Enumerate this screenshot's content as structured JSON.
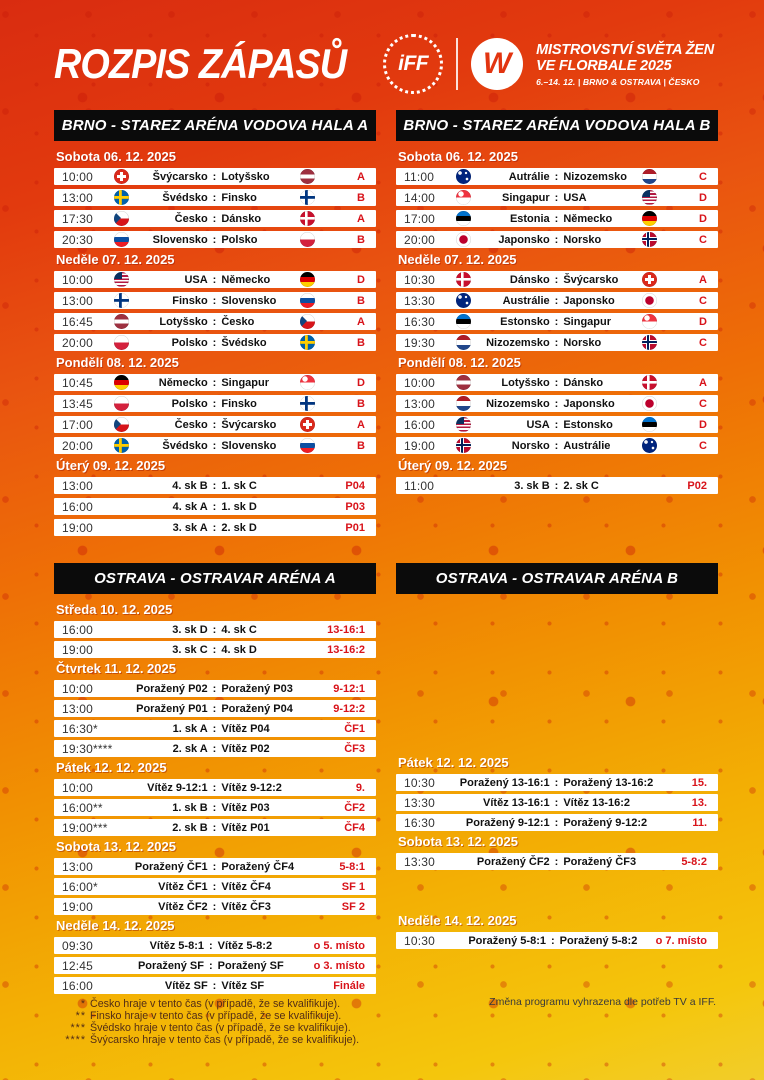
{
  "page": {
    "title": "ROZPIS ZÁPASŮ",
    "logo": {
      "iff_label": "iFF",
      "wfc_label": "W",
      "event_title_line1": "MISTROVSTVÍ SVĚTA ŽEN",
      "event_title_line2": "VE FLORBALE 2025",
      "event_subtitle": "6.–14. 12. | BRNO & OSTRAVA | ČESKO"
    },
    "colors": {
      "accent_red": "#d8131a",
      "bar_black": "#0b0b0b",
      "background_top": "#d92c10",
      "background_bottom": "#f2cd2a",
      "row_white": "#ffffff"
    }
  },
  "sections": [
    {
      "id": "brno-a",
      "title": "BRNO - STAREZ ARÉNA VODOVA HALA A",
      "groups": [
        {
          "date": "Sobota 06. 12. 2025",
          "matches": [
            {
              "time": "10:00",
              "home": "Švýcarsko",
              "away": "Lotyšsko",
              "home_flag": "che",
              "away_flag": "lat",
              "code": "A"
            },
            {
              "time": "13:00",
              "home": "Švédsko",
              "away": "Finsko",
              "home_flag": "swe",
              "away_flag": "fin",
              "code": "B"
            },
            {
              "time": "17:30",
              "home": "Česko",
              "away": "Dánsko",
              "home_flag": "cze",
              "away_flag": "den",
              "code": "A"
            },
            {
              "time": "20:30",
              "home": "Slovensko",
              "away": "Polsko",
              "home_flag": "svk",
              "away_flag": "pol",
              "code": "B"
            }
          ]
        },
        {
          "date": "Neděle 07. 12. 2025",
          "matches": [
            {
              "time": "10:00",
              "home": "USA",
              "away": "Německo",
              "home_flag": "usa",
              "away_flag": "ger",
              "code": "D"
            },
            {
              "time": "13:00",
              "home": "Finsko",
              "away": "Slovensko",
              "home_flag": "fin",
              "away_flag": "svk",
              "code": "B"
            },
            {
              "time": "16:45",
              "home": "Lotyšsko",
              "away": "Česko",
              "home_flag": "lat",
              "away_flag": "cze",
              "code": "A"
            },
            {
              "time": "20:00",
              "home": "Polsko",
              "away": "Švédsko",
              "home_flag": "pol",
              "away_flag": "swe",
              "code": "B"
            }
          ]
        },
        {
          "date": "Pondělí 08. 12. 2025",
          "matches": [
            {
              "time": "10:45",
              "home": "Německo",
              "away": "Singapur",
              "home_flag": "ger",
              "away_flag": "sgp",
              "code": "D"
            },
            {
              "time": "13:45",
              "home": "Polsko",
              "away": "Finsko",
              "home_flag": "pol",
              "away_flag": "fin",
              "code": "B"
            },
            {
              "time": "17:00",
              "home": "Česko",
              "away": "Švýcarsko",
              "home_flag": "cze",
              "away_flag": "che",
              "code": "A"
            },
            {
              "time": "20:00",
              "home": "Švédsko",
              "away": "Slovensko",
              "home_flag": "swe",
              "away_flag": "svk",
              "code": "B"
            }
          ]
        },
        {
          "date": "Úterý 09. 12. 2025",
          "matches": [
            {
              "time": "13:00",
              "home": "4. sk B",
              "away": "1. sk C",
              "home_flag": null,
              "away_flag": null,
              "code": "P04"
            },
            {
              "time": "16:00",
              "home": "4. sk A",
              "away": "1. sk D",
              "home_flag": null,
              "away_flag": null,
              "code": "P03"
            },
            {
              "time": "19:00",
              "home": "3. sk A",
              "away": "2. sk D",
              "home_flag": null,
              "away_flag": null,
              "code": "P01"
            }
          ]
        }
      ]
    },
    {
      "id": "brno-b",
      "title": "BRNO - STAREZ ARÉNA VODOVA HALA B",
      "groups": [
        {
          "date": "Sobota 06. 12. 2025",
          "matches": [
            {
              "time": "11:00",
              "home": "Autrálie",
              "away": "Nizozemsko",
              "home_flag": "aus",
              "away_flag": "ned",
              "code": "C"
            },
            {
              "time": "14:00",
              "home": "Singapur",
              "away": "USA",
              "home_flag": "sgp",
              "away_flag": "usa",
              "code": "D"
            },
            {
              "time": "17:00",
              "home": "Estonia",
              "away": "Německo",
              "home_flag": "est",
              "away_flag": "ger",
              "code": "D"
            },
            {
              "time": "20:00",
              "home": "Japonsko",
              "away": "Norsko",
              "home_flag": "jpn",
              "away_flag": "nor",
              "code": "C"
            }
          ]
        },
        {
          "date": "Neděle 07. 12. 2025",
          "matches": [
            {
              "time": "10:30",
              "home": "Dánsko",
              "away": "Švýcarsko",
              "home_flag": "den",
              "away_flag": "che",
              "code": "A"
            },
            {
              "time": "13:30",
              "home": "Austrálie",
              "away": "Japonsko",
              "home_flag": "aus",
              "away_flag": "jpn",
              "code": "C"
            },
            {
              "time": "16:30",
              "home": "Estonsko",
              "away": "Singapur",
              "home_flag": "est",
              "away_flag": "sgp",
              "code": "D"
            },
            {
              "time": "19:30",
              "home": "Nizozemsko",
              "away": "Norsko",
              "home_flag": "ned",
              "away_flag": "nor",
              "code": "C"
            }
          ]
        },
        {
          "date": "Pondělí 08. 12. 2025",
          "matches": [
            {
              "time": "10:00",
              "home": "Lotyšsko",
              "away": "Dánsko",
              "home_flag": "lat",
              "away_flag": "den",
              "code": "A"
            },
            {
              "time": "13:00",
              "home": "Nizozemsko",
              "away": "Japonsko",
              "home_flag": "ned",
              "away_flag": "jpn",
              "code": "C"
            },
            {
              "time": "16:00",
              "home": "USA",
              "away": "Estonsko",
              "home_flag": "usa",
              "away_flag": "est",
              "code": "D"
            },
            {
              "time": "19:00",
              "home": "Norsko",
              "away": "Austrálie",
              "home_flag": "nor",
              "away_flag": "aus",
              "code": "C"
            }
          ]
        },
        {
          "date": "Úterý 09. 12. 2025",
          "matches": [
            {
              "time": "11:00",
              "home": "3. sk B",
              "away": "2. sk C",
              "home_flag": null,
              "away_flag": null,
              "code": "P02"
            }
          ]
        }
      ]
    },
    {
      "id": "ostrava-a",
      "title": "OSTRAVA - OSTRAVAR ARÉNA A",
      "groups": [
        {
          "date": "Středa 10. 12. 2025",
          "matches": [
            {
              "time": "16:00",
              "home": "3. sk D",
              "away": "4. sk C",
              "home_flag": null,
              "away_flag": null,
              "code": "13-16:1"
            },
            {
              "time": "19:00",
              "home": "3. sk C",
              "away": "4. sk D",
              "home_flag": null,
              "away_flag": null,
              "code": "13-16:2"
            }
          ]
        },
        {
          "date": "Čtvrtek 11. 12. 2025",
          "matches": [
            {
              "time": "10:00",
              "home": "Poražený P02",
              "away": "Poražený P03",
              "home_flag": null,
              "away_flag": null,
              "code": "9-12:1"
            },
            {
              "time": "13:00",
              "home": "Poražený P01",
              "away": "Poražený P04",
              "home_flag": null,
              "away_flag": null,
              "code": "9-12:2"
            },
            {
              "time": "16:30*",
              "home": "1. sk A",
              "away": "Vítěz P04",
              "home_flag": null,
              "away_flag": null,
              "code": "ČF1"
            },
            {
              "time": "19:30****",
              "home": "2. sk A",
              "away": "Vítěz P02",
              "home_flag": null,
              "away_flag": null,
              "code": "ČF3"
            }
          ]
        },
        {
          "date": "Pátek 12. 12. 2025",
          "matches": [
            {
              "time": "10:00",
              "home": "Vítěz 9-12:1",
              "away": "Vítěz 9-12:2",
              "home_flag": null,
              "away_flag": null,
              "code": "9."
            },
            {
              "time": "16:00**",
              "home": "1. sk B",
              "away": "Vítěz P03",
              "home_flag": null,
              "away_flag": null,
              "code": "ČF2"
            },
            {
              "time": "19:00***",
              "home": "2. sk B",
              "away": "Vítěz P01",
              "home_flag": null,
              "away_flag": null,
              "code": "ČF4"
            }
          ]
        },
        {
          "date": "Sobota 13. 12. 2025",
          "matches": [
            {
              "time": "13:00",
              "home": "Poražený ČF1",
              "away": "Poražený ČF4",
              "home_flag": null,
              "away_flag": null,
              "code": "5-8:1"
            },
            {
              "time": "16:00*",
              "home": "Vítěz ČF1",
              "away": "Vítěz ČF4",
              "home_flag": null,
              "away_flag": null,
              "code": "SF 1"
            },
            {
              "time": "19:00",
              "home": "Vítěz ČF2",
              "away": "Vítěz ČF3",
              "home_flag": null,
              "away_flag": null,
              "code": "SF 2"
            }
          ]
        },
        {
          "date": "Neděle 14. 12. 2025",
          "matches": [
            {
              "time": "09:30",
              "home": "Vítěz 5-8:1",
              "away": "Vítěz 5-8:2",
              "home_flag": null,
              "away_flag": null,
              "code": "o 5. místo"
            },
            {
              "time": "12:45",
              "home": "Poražený SF",
              "away": "Poražený SF",
              "home_flag": null,
              "away_flag": null,
              "code": "o 3. místo"
            },
            {
              "time": "16:00",
              "home": "Vítěz SF",
              "away": "Vítěz SF",
              "home_flag": null,
              "away_flag": null,
              "code": "Finále"
            }
          ]
        }
      ],
      "footnotes": [
        {
          "marker": "*",
          "text": "Česko hraje v tento čas (v případě, že se kvalifikuje)."
        },
        {
          "marker": "**",
          "text": "Finsko hraje v tento čas (v případě, že se kvalifikuje)."
        },
        {
          "marker": "***",
          "text": "Švédsko hraje v tento čas (v případě, že se kvalifikuje)."
        },
        {
          "marker": "****",
          "text": "Švýcarsko hraje v tento čas (v případě, že se kvalifikuje)."
        }
      ]
    },
    {
      "id": "ostrava-b",
      "title": "OSTRAVA - OSTRAVAR ARÉNA B",
      "groups": [
        {
          "date": "Pátek 12. 12. 2025",
          "matches": [
            {
              "time": "10:30",
              "home": "Poražený 13-16:1",
              "away": "Poražený 13-16:2",
              "home_flag": null,
              "away_flag": null,
              "code": "15."
            },
            {
              "time": "13:30",
              "home": "Vítěz 13-16:1",
              "away": "Vítěz 13-16:2",
              "home_flag": null,
              "away_flag": null,
              "code": "13."
            },
            {
              "time": "16:30",
              "home": "Poražený 9-12:1",
              "away": "Poražený 9-12:2",
              "home_flag": null,
              "away_flag": null,
              "code": "11."
            }
          ]
        },
        {
          "date": "Sobota 13. 12. 2025",
          "matches": [
            {
              "time": "13:30",
              "home": "Poražený ČF2",
              "away": "Poražený ČF3",
              "home_flag": null,
              "away_flag": null,
              "code": "5-8:2"
            }
          ]
        },
        {
          "date": "Neděle 14. 12. 2025",
          "matches": [
            {
              "time": "10:30",
              "home": "Poražený 5-8:1",
              "away": "Poražený 5-8:2",
              "home_flag": null,
              "away_flag": null,
              "code": "o 7. místo"
            }
          ]
        }
      ],
      "note": "Změna programu vyhrazena dle potřeb TV a IFF."
    }
  ]
}
